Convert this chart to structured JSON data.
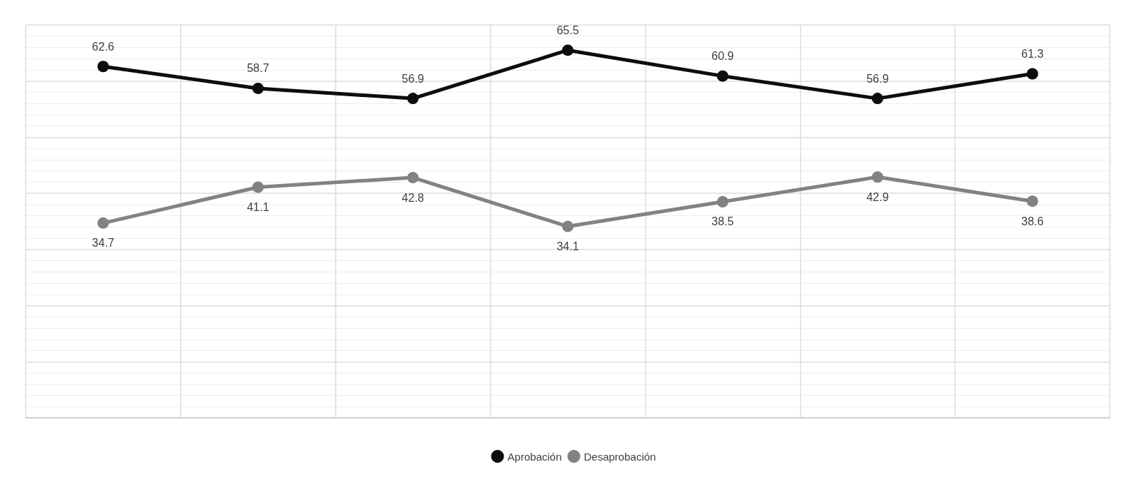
{
  "chart_data": {
    "type": "line",
    "categories": [
      null,
      null,
      null,
      null,
      null,
      null,
      null
    ],
    "series": [
      {
        "name": "Aprobación",
        "color": "#0d0d0d",
        "values": [
          62.6,
          58.7,
          56.9,
          65.5,
          60.9,
          56.9,
          61.3
        ]
      },
      {
        "name": "Desaprobación",
        "color": "#828282",
        "values": [
          34.7,
          41.1,
          42.8,
          34.1,
          38.5,
          42.9,
          38.6
        ]
      }
    ],
    "ylim": [
      0,
      70
    ],
    "yticks": [
      {
        "value": 0,
        "label": null
      },
      {
        "value": 10,
        "label": null
      },
      {
        "value": 20,
        "label": null
      },
      {
        "value": 30,
        "label": null
      },
      {
        "value": 40,
        "label": null
      },
      {
        "value": 50,
        "label": null
      },
      {
        "value": 60,
        "label": null
      },
      {
        "value": 70,
        "label": null
      }
    ],
    "grid": true,
    "legend": "bottom",
    "marker": "circle",
    "line_style": "solid",
    "data_labels": true
  }
}
